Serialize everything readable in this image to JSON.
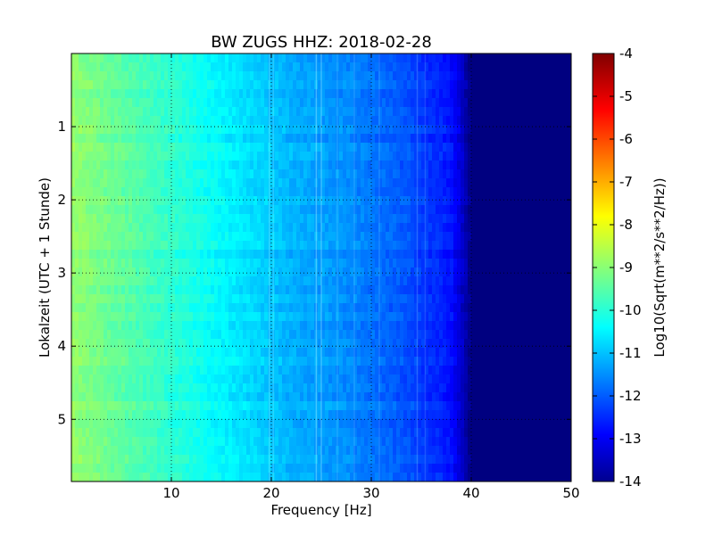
{
  "chart_data": {
    "type": "heatmap",
    "title": "BW ZUGS HHZ: 2018-02-28",
    "xlabel": "Frequency [Hz]",
    "ylabel": "Lokalzeit (UTC + 1 Stunde)",
    "xlim": [
      0,
      50
    ],
    "ylim": [
      5.85,
      0
    ],
    "x_ticks": [
      "10",
      "20",
      "30",
      "40",
      "50"
    ],
    "y_ticks": [
      "1",
      "2",
      "3",
      "4",
      "5"
    ],
    "grid": true,
    "colorbar": {
      "label": "Log10(Sqrt(m**2/s**2/Hz))",
      "range": [
        -14,
        -4
      ],
      "ticks": [
        "-4",
        "-5",
        "-6",
        "-7",
        "-8",
        "-9",
        "-10",
        "-11",
        "-12",
        "-13",
        "-14"
      ],
      "colormap": "jet"
    },
    "profile": {
      "frequency_hz": [
        0,
        2,
        5,
        8,
        10,
        12,
        15,
        18,
        20,
        22,
        25,
        28,
        30,
        32,
        34,
        35,
        37,
        38,
        39,
        40,
        50
      ],
      "log10_psd": [
        -8.8,
        -9.0,
        -9.3,
        -9.6,
        -9.8,
        -10.0,
        -10.3,
        -10.6,
        -10.8,
        -11.0,
        -11.2,
        -11.4,
        -11.6,
        -11.8,
        -12.0,
        -12.2,
        -12.4,
        -12.6,
        -13.2,
        -14.0,
        -14.0
      ]
    }
  }
}
